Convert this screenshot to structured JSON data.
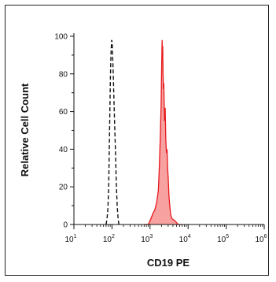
{
  "chart_data": {
    "type": "area",
    "xlabel": "CD19 PE",
    "ylabel": "Relative Cell Count",
    "x_scale": "log",
    "xlim": [
      10,
      1000000
    ],
    "ylim": [
      0,
      100
    ],
    "y_ticks": [
      0,
      20,
      40,
      60,
      80,
      100
    ],
    "y_tick_labels": [
      "0",
      "20",
      "40",
      "60",
      "80",
      "100"
    ],
    "x_ticks": [
      10,
      100,
      1000,
      10000,
      100000,
      1000000
    ],
    "x_tick_labels": [
      {
        "base": "10",
        "exp": "1"
      },
      {
        "base": "10",
        "exp": "2"
      },
      {
        "base": "10",
        "exp": "3"
      },
      {
        "base": "10",
        "exp": "4"
      },
      {
        "base": "10",
        "exp": "5"
      },
      {
        "base": "10",
        "exp": "6"
      }
    ],
    "grid": false,
    "series": [
      {
        "style": "dashed",
        "color": "#111111",
        "filled": false,
        "points": [
          [
            70,
            0
          ],
          [
            74,
            3
          ],
          [
            78,
            8
          ],
          [
            82,
            20
          ],
          [
            85,
            40
          ],
          [
            88,
            60
          ],
          [
            91,
            78
          ],
          [
            94,
            90
          ],
          [
            98,
            98
          ],
          [
            101,
            97
          ],
          [
            104,
            90
          ],
          [
            108,
            80
          ],
          [
            112,
            68
          ],
          [
            118,
            52
          ],
          [
            124,
            38
          ],
          [
            130,
            22
          ],
          [
            137,
            10
          ],
          [
            145,
            3
          ],
          [
            152,
            0
          ]
        ]
      },
      {
        "style": "solid",
        "color": "#e8191c",
        "fill": "#f7a1a1",
        "filled": true,
        "points": [
          [
            700,
            0
          ],
          [
            900,
            0
          ],
          [
            1050,
            3
          ],
          [
            1200,
            6
          ],
          [
            1350,
            8
          ],
          [
            1500,
            12
          ],
          [
            1650,
            18
          ],
          [
            1750,
            30
          ],
          [
            1850,
            45
          ],
          [
            1950,
            62
          ],
          [
            2000,
            78
          ],
          [
            2050,
            92
          ],
          [
            2080,
            98
          ],
          [
            2110,
            90
          ],
          [
            2150,
            95
          ],
          [
            2200,
            80
          ],
          [
            2250,
            72
          ],
          [
            2300,
            75
          ],
          [
            2400,
            55
          ],
          [
            2500,
            62
          ],
          [
            2600,
            45
          ],
          [
            2700,
            38
          ],
          [
            2800,
            40
          ],
          [
            2900,
            30
          ],
          [
            3000,
            25
          ],
          [
            3150,
            15
          ],
          [
            3300,
            10
          ],
          [
            3500,
            5
          ],
          [
            3800,
            3
          ],
          [
            4500,
            2
          ],
          [
            5500,
            0
          ],
          [
            7000,
            0
          ]
        ]
      }
    ]
  }
}
